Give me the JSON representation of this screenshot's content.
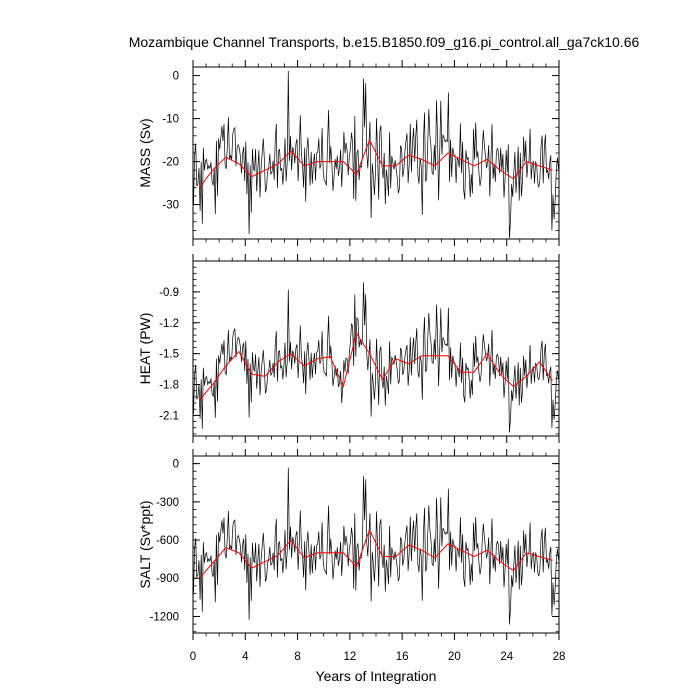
{
  "chart_data": {
    "type": "line",
    "title": "Mozambique Channel Transports, b.e15.B1850.f09_g16.pi_control.all_ga7ck10.66",
    "xlabel": "Years of Integration",
    "xlim": [
      0,
      28
    ],
    "x_ticks": [
      0,
      4,
      8,
      12,
      16,
      20,
      24,
      28
    ],
    "x_tick_labels": [
      "0",
      "4",
      "8",
      "12",
      "16",
      "20",
      "24",
      "28"
    ],
    "grid": false,
    "panels": [
      {
        "name": "mass",
        "ylabel": "MASS (Sv)",
        "ylim": [
          -38,
          2
        ],
        "y_ticks": [
          0,
          -10,
          -20,
          -30
        ],
        "y_tick_labels": [
          "0",
          "-10",
          "-20",
          "-30"
        ],
        "monthly_color": "#000000",
        "annual_color": "#ff0000",
        "annual": {
          "x": [
            0.5,
            1.5,
            2.5,
            3.5,
            4.5,
            5.5,
            6.5,
            7.5,
            8.5,
            9.5,
            10.5,
            11.5,
            12.5,
            13.5,
            14.5,
            15.5,
            16.5,
            17.5,
            18.5,
            19.5,
            20.5,
            21.5,
            22.5,
            23.5,
            24.5,
            25.5,
            26.5,
            27.5
          ],
          "y": [
            -26,
            -22,
            -19,
            -20.5,
            -23.5,
            -22,
            -20.5,
            -17.5,
            -21,
            -20,
            -20,
            -20,
            -23,
            -15,
            -21,
            -21,
            -18.5,
            -19.5,
            -21,
            -18,
            -19.5,
            -21,
            -19.5,
            -22,
            -24,
            -20,
            -21,
            -22
          ]
        }
      },
      {
        "name": "heat",
        "ylabel": "HEAT (PW)",
        "ylim": [
          -2.3,
          -0.6
        ],
        "y_ticks": [
          -0.9,
          -1.2,
          -1.5,
          -1.8,
          -2.1
        ],
        "y_tick_labels": [
          "-0.9",
          "-1.2",
          "-1.5",
          "-1.8",
          "-2.1"
        ],
        "monthly_color": "#000000",
        "annual_color": "#ff0000",
        "annual": {
          "x": [
            0.5,
            1.5,
            2.5,
            3.5,
            4.5,
            5.5,
            6.5,
            7.5,
            8.5,
            9.5,
            10.5,
            11.5,
            12.5,
            13.5,
            14.5,
            15.5,
            16.5,
            17.5,
            18.5,
            19.5,
            20.5,
            21.5,
            22.5,
            23.5,
            24.5,
            25.5,
            26.5,
            27.5
          ],
          "y": [
            -1.95,
            -1.8,
            -1.62,
            -1.48,
            -1.7,
            -1.72,
            -1.58,
            -1.5,
            -1.62,
            -1.55,
            -1.53,
            -1.82,
            -1.3,
            -1.5,
            -1.75,
            -1.55,
            -1.6,
            -1.52,
            -1.52,
            -1.52,
            -1.68,
            -1.68,
            -1.5,
            -1.7,
            -1.82,
            -1.72,
            -1.58,
            -1.76
          ]
        }
      },
      {
        "name": "salt",
        "ylabel": "SALT (Sv*ppt)",
        "ylim": [
          -1330,
          60
        ],
        "y_ticks": [
          0,
          -300,
          -600,
          -900,
          -1200
        ],
        "y_tick_labels": [
          "0",
          "-300",
          "-600",
          "-900",
          "-1200"
        ],
        "monthly_color": "#000000",
        "annual_color": "#ff0000",
        "annual": {
          "x": [
            0.5,
            1.5,
            2.5,
            3.5,
            4.5,
            5.5,
            6.5,
            7.5,
            8.5,
            9.5,
            10.5,
            11.5,
            12.5,
            13.5,
            14.5,
            15.5,
            16.5,
            17.5,
            18.5,
            19.5,
            20.5,
            21.5,
            22.5,
            23.5,
            24.5,
            25.5,
            26.5,
            27.5
          ],
          "y": [
            -900,
            -780,
            -660,
            -700,
            -820,
            -770,
            -720,
            -600,
            -740,
            -700,
            -700,
            -700,
            -810,
            -520,
            -730,
            -730,
            -640,
            -680,
            -740,
            -630,
            -680,
            -730,
            -680,
            -770,
            -840,
            -700,
            -730,
            -760
          ]
        }
      }
    ]
  }
}
